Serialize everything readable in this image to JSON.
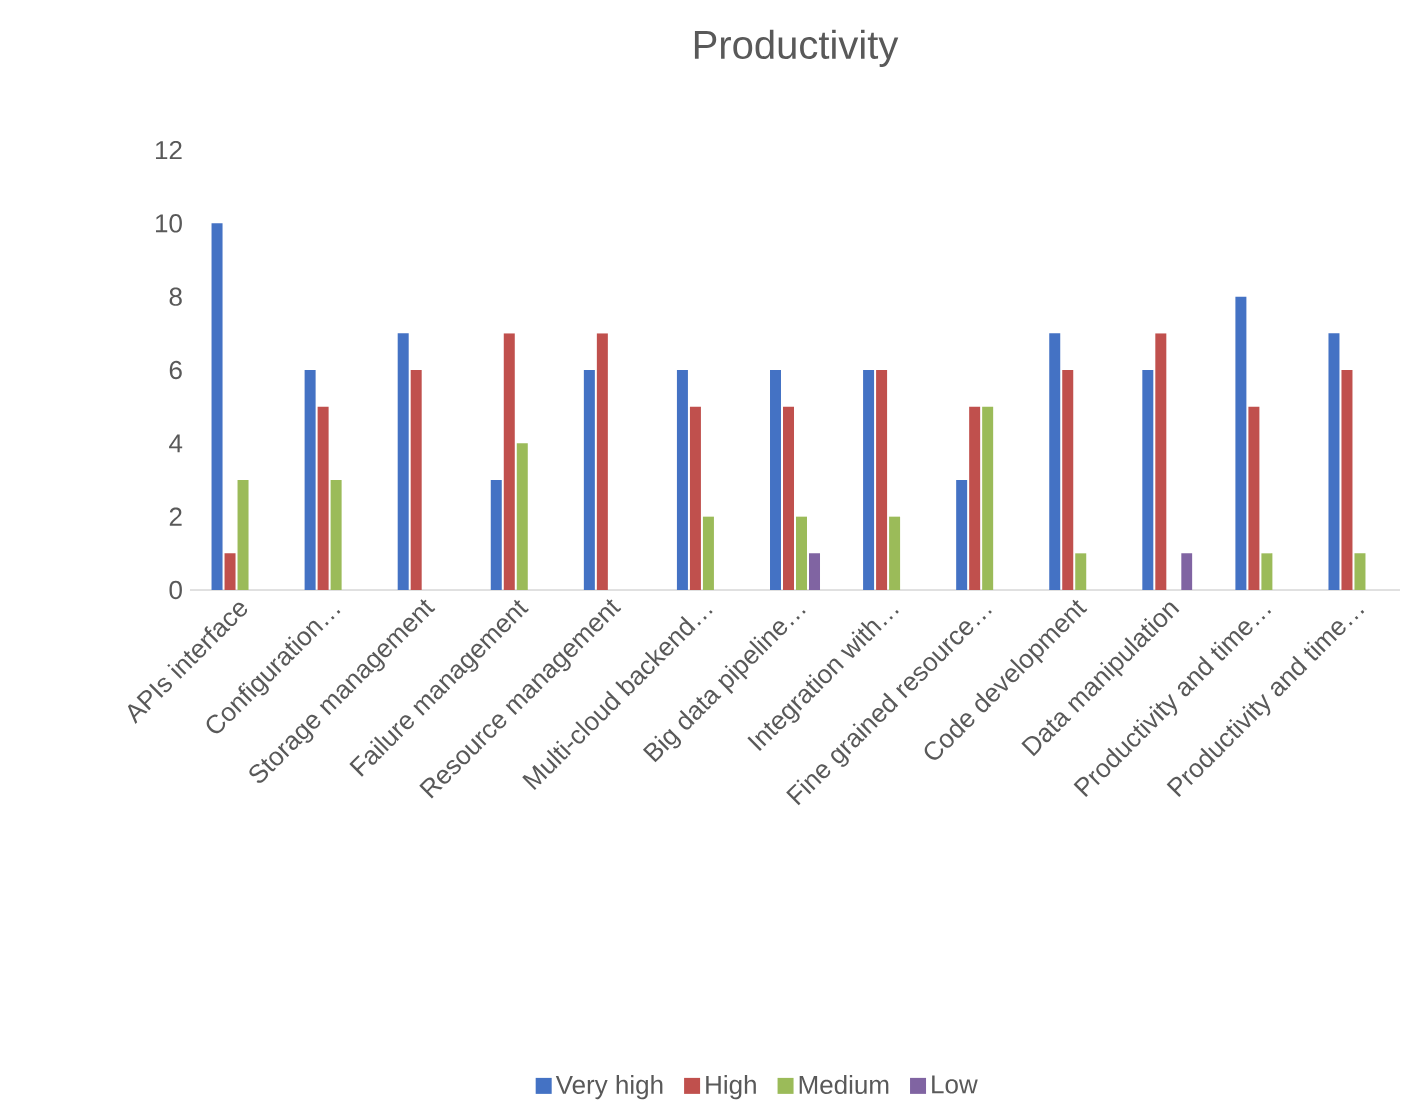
{
  "chart_data": {
    "type": "bar",
    "title": "Productivity",
    "categories": [
      "APIs interface",
      "Configuration…",
      "Storage management",
      "Failure management",
      "Resource management",
      "Multi-cloud backend…",
      "Big data pipeline…",
      "Integration with…",
      "Fine grained resource…",
      "Code development",
      "Data manipulation",
      "Productivity and time…",
      "Productivity and time…"
    ],
    "series": [
      {
        "name": "Very high",
        "color": "#4472c4",
        "values": [
          10,
          6,
          7,
          3,
          6,
          6,
          6,
          6,
          3,
          7,
          6,
          8,
          7
        ]
      },
      {
        "name": "High",
        "color": "#c0504d",
        "values": [
          1,
          5,
          6,
          7,
          7,
          5,
          5,
          6,
          5,
          6,
          7,
          5,
          6
        ]
      },
      {
        "name": "Medium",
        "color": "#9bbb59",
        "values": [
          3,
          3,
          null,
          4,
          null,
          2,
          2,
          2,
          5,
          1,
          null,
          1,
          1
        ]
      },
      {
        "name": "Low",
        "color": "#8064a2",
        "values": [
          null,
          null,
          null,
          null,
          null,
          null,
          1,
          null,
          null,
          null,
          1,
          null,
          null
        ]
      }
    ],
    "ylim": [
      0,
      12
    ],
    "yticks": [
      0,
      2,
      4,
      6,
      8,
      10,
      12
    ],
    "grid": false,
    "legend": "bottom"
  }
}
